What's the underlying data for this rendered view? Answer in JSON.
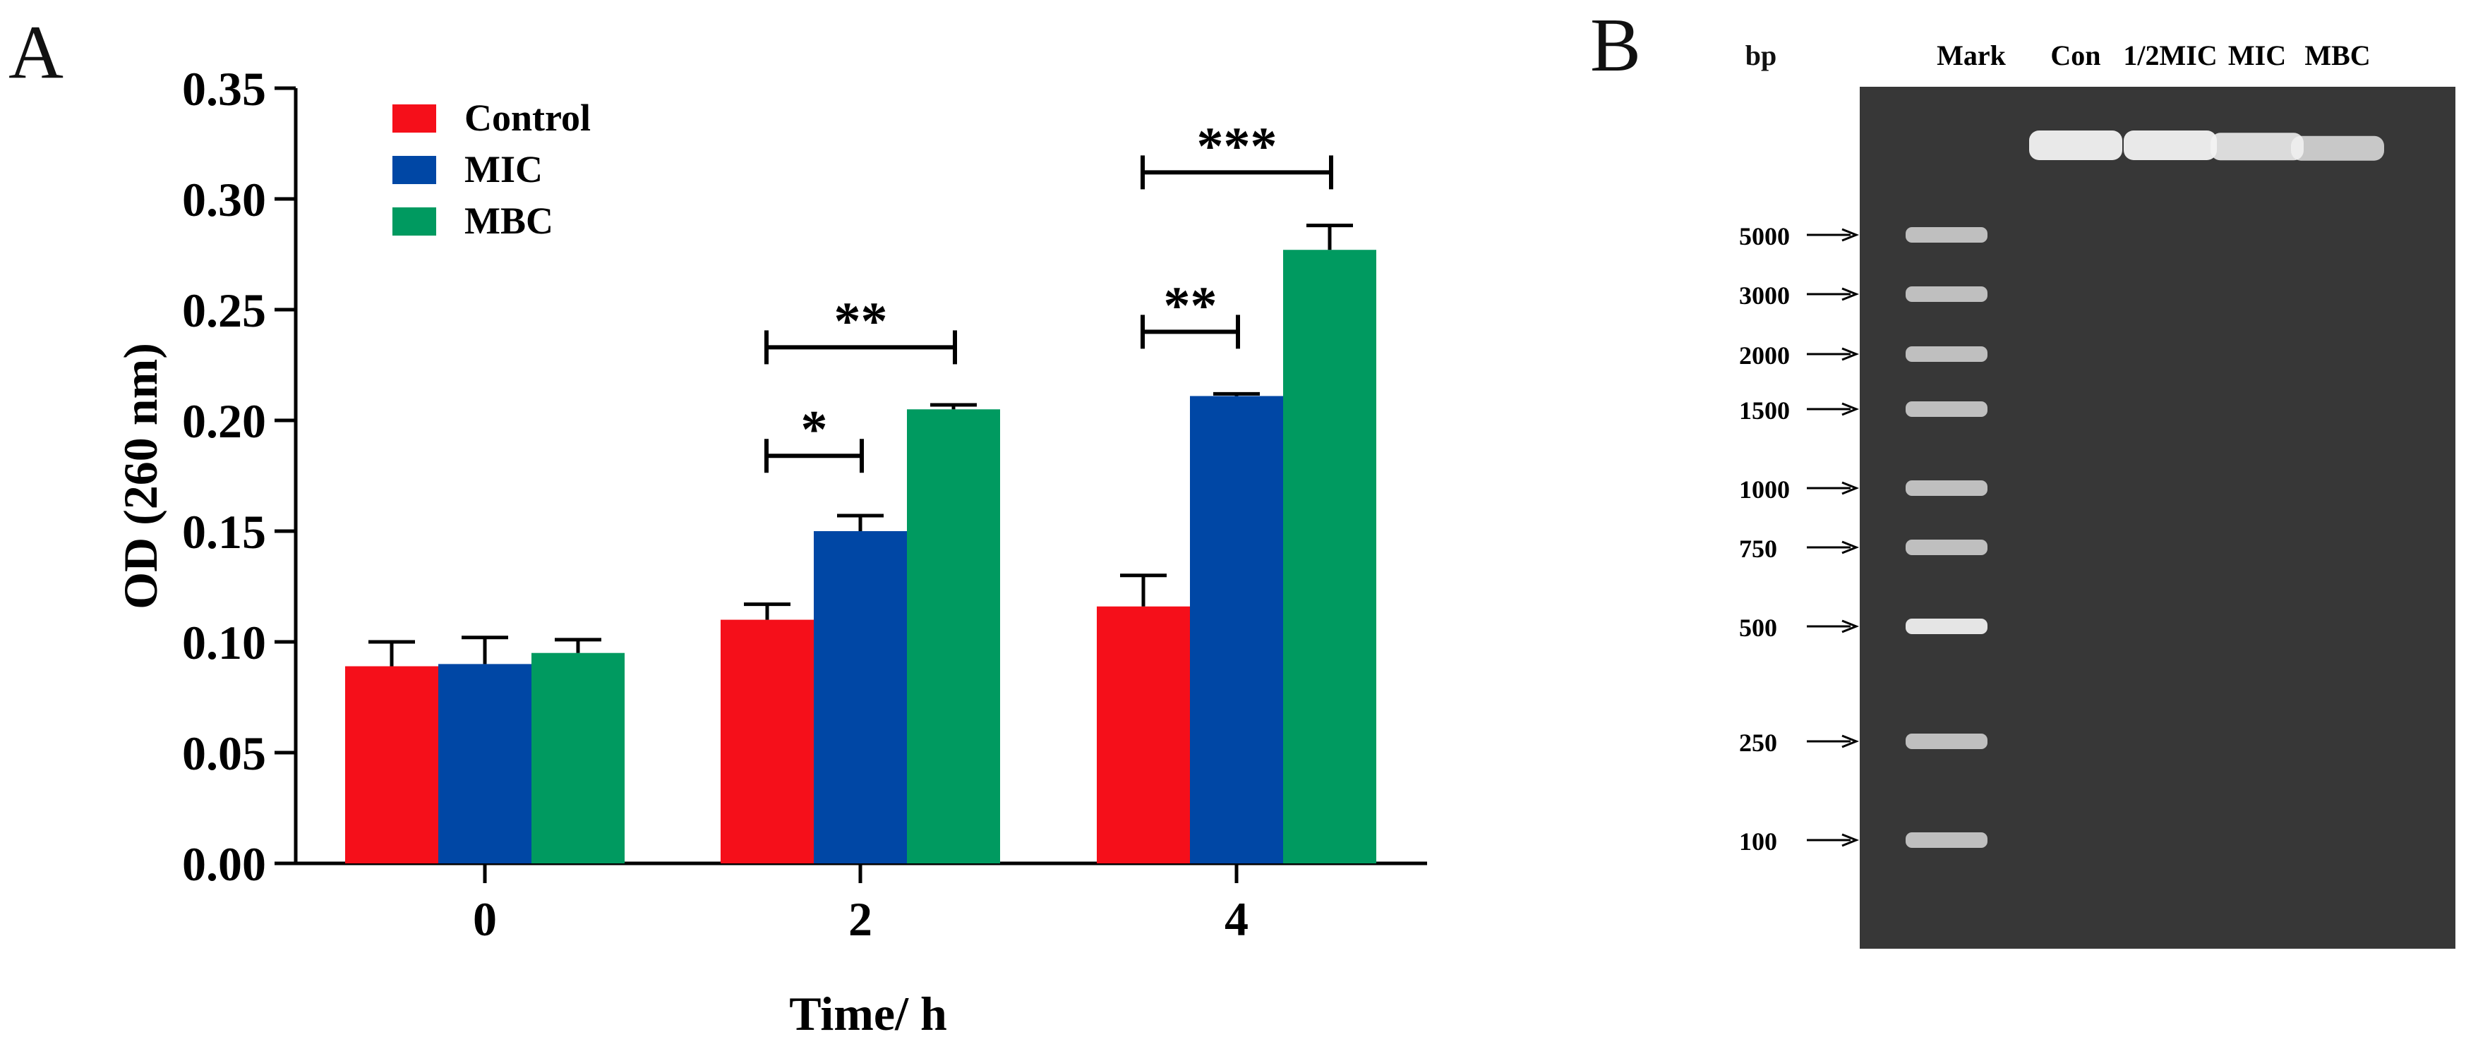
{
  "panels": {
    "a_label": "A",
    "b_label": "B"
  },
  "chart_data": {
    "type": "bar",
    "title": "",
    "xlabel": "Time/ h",
    "ylabel": "OD (260 nm)",
    "ylim": [
      0,
      0.35
    ],
    "yticks": [
      "0.00",
      "0.05",
      "0.10",
      "0.15",
      "0.20",
      "0.25",
      "0.30",
      "0.35"
    ],
    "categories": [
      "0",
      "2",
      "4"
    ],
    "series": [
      {
        "name": "Control",
        "color": "#f50f1a",
        "values": [
          0.089,
          0.11,
          0.116
        ],
        "errors": [
          0.011,
          0.007,
          0.014
        ]
      },
      {
        "name": "MIC",
        "color": "#0047a5",
        "values": [
          0.09,
          0.15,
          0.211
        ],
        "errors": [
          0.012,
          0.007,
          0.001
        ]
      },
      {
        "name": "MBC",
        "color": "#009a60",
        "values": [
          0.095,
          0.205,
          0.277
        ],
        "errors": [
          0.006,
          0.002,
          0.011
        ]
      }
    ],
    "legend_position": "top-left",
    "significance": [
      {
        "category": "2",
        "from_series": "Control",
        "to_series": "MIC",
        "label": "*",
        "level": 0.184
      },
      {
        "category": "2",
        "from_series": "Control",
        "to_series": "MBC",
        "label": "**",
        "level": 0.233
      },
      {
        "category": "4",
        "from_series": "Control",
        "to_series": "MIC",
        "label": "**",
        "level": 0.24
      },
      {
        "category": "4",
        "from_series": "Control",
        "to_series": "MBC",
        "label": "***",
        "level": 0.312
      }
    ]
  },
  "gel": {
    "unit_label": "bp",
    "lanes": [
      {
        "label": "Mark"
      },
      {
        "label": "Con",
        "band_intensity": 1.0
      },
      {
        "label": "1/2MIC",
        "band_intensity": 1.0
      },
      {
        "label": "MIC",
        "band_intensity": 0.85
      },
      {
        "label": "MBC",
        "band_intensity": 0.65
      }
    ],
    "markers": [
      "5000",
      "3000",
      "2000",
      "1500",
      "1000",
      "750",
      "500",
      "250",
      "100"
    ]
  }
}
